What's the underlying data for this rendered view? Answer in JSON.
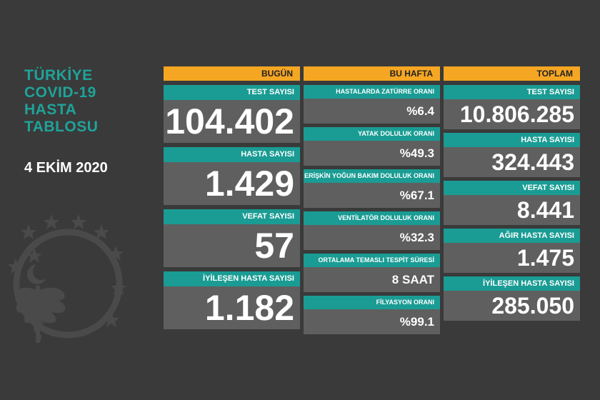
{
  "title": {
    "line1": "TÜRKİYE",
    "line2": "COVID-19",
    "line3": "HASTA",
    "line4": "TABLOSU"
  },
  "date": "4 EKİM 2020",
  "colors": {
    "accent": "#f5a623",
    "teal": "#1a9c94",
    "title": "#1fa39a",
    "background": "#3a3a3a",
    "cell": "#5f5f5f"
  },
  "emblem": {
    "icon": "ministry-of-health-emblem-icon"
  },
  "bugun": {
    "header": "BUGÜN",
    "items": [
      {
        "label": "TEST SAYISI",
        "value": "104.402"
      },
      {
        "label": "HASTA SAYISI",
        "value": "1.429"
      },
      {
        "label": "VEFAT SAYISI",
        "value": "57"
      },
      {
        "label": "İYİLEŞEN HASTA SAYISI",
        "value": "1.182"
      }
    ]
  },
  "bu_hafta": {
    "header": "BU HAFTA",
    "items": [
      {
        "label": "HASTALARDA ZATÜRRE ORANI",
        "value": "%6.4"
      },
      {
        "label": "YATAK DOLULUK ORANI",
        "value": "%49.3"
      },
      {
        "label": "ERİŞKİN YOĞUN BAKIM DOLULUK ORANI",
        "value": "%67.1"
      },
      {
        "label": "VENTİLATÖR DOLULUK ORANI",
        "value": "%32.3"
      },
      {
        "label": "ORTALAMA TEMASLI TESPİT SÜRESİ",
        "value": "8 SAAT"
      },
      {
        "label": "FİLYASYON ORANI",
        "value": "%99.1"
      }
    ]
  },
  "toplam": {
    "header": "TOPLAM",
    "items": [
      {
        "label": "TEST SAYISI",
        "value": "10.806.285"
      },
      {
        "label": "HASTA SAYISI",
        "value": "324.443"
      },
      {
        "label": "VEFAT SAYISI",
        "value": "8.441"
      },
      {
        "label": "AĞIR HASTA SAYISI",
        "value": "1.475"
      },
      {
        "label": "İYİLEŞEN HASTA SAYISI",
        "value": "285.050"
      }
    ]
  }
}
